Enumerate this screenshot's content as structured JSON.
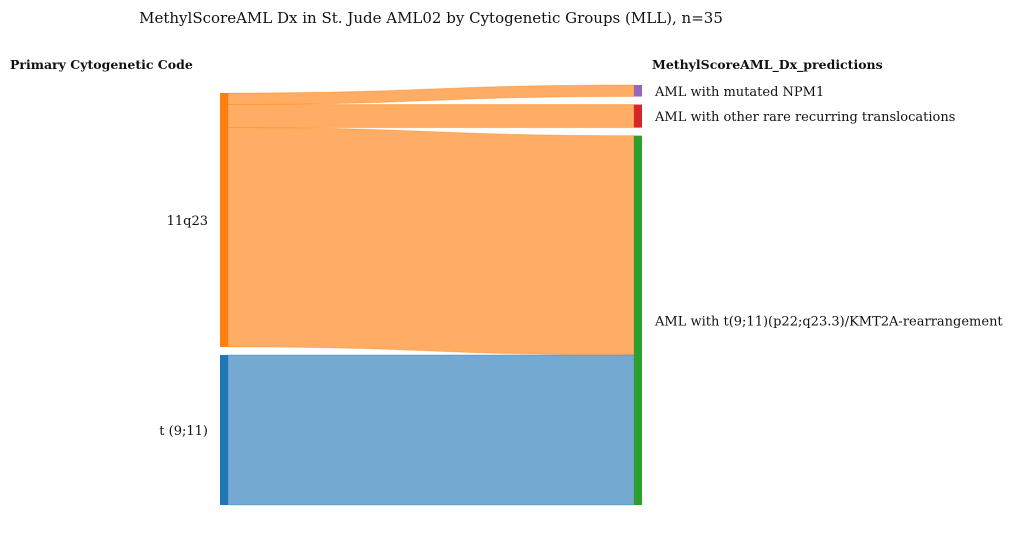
{
  "chart_data": {
    "type": "sankey",
    "title": "MethylScoreAML Dx in St. Jude AML02 by Cytogenetic Groups (MLL), n=35",
    "left_header": "Primary Cytogenetic Code",
    "right_header": "MethylScoreAML_Dx_predictions",
    "total": 35,
    "sources": [
      {
        "id": "11q23",
        "label": "11q23",
        "color": "#ff7f0e",
        "link_color": "#ffa85c"
      },
      {
        "id": "t911",
        "label": "t (9;11)",
        "color": "#1f77b4",
        "link_color": "#6da5cf"
      }
    ],
    "targets": [
      {
        "id": "npm1",
        "label": "AML with mutated NPM1",
        "color": "#9467bd"
      },
      {
        "id": "rare",
        "label": "AML with other rare recurring translocations",
        "color": "#d62728"
      },
      {
        "id": "kmt2a",
        "label": "AML with t(9;11)(p22;q23.3)/KMT2A-rearrangement",
        "color": "#2ca02c"
      }
    ],
    "flows": [
      {
        "source": "11q23",
        "target": "npm1",
        "value": 1
      },
      {
        "source": "11q23",
        "target": "rare",
        "value": 2
      },
      {
        "source": "11q23",
        "target": "kmt2a",
        "value": 19
      },
      {
        "source": "t911",
        "target": "kmt2a",
        "value": 13
      }
    ]
  }
}
